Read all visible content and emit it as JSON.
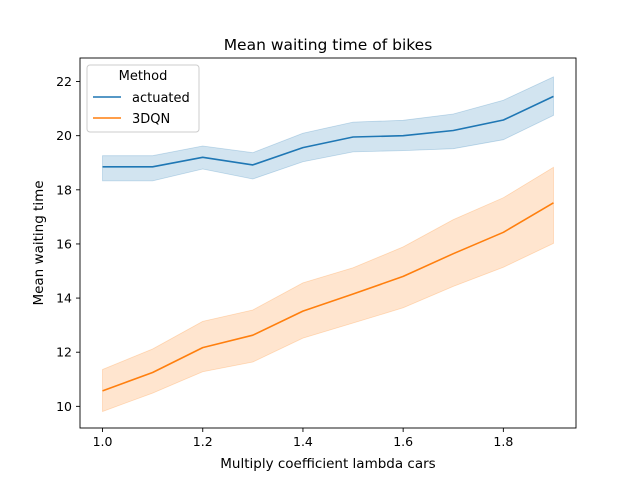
{
  "chart_data": {
    "type": "line",
    "title": "Mean waiting time of bikes",
    "xlabel": "Multiply coefficient lambda cars",
    "ylabel": "Mean waiting time",
    "x": [
      1.0,
      1.1,
      1.2,
      1.3,
      1.4,
      1.5,
      1.6,
      1.7,
      1.8,
      1.9
    ],
    "xlim": [
      0.955,
      1.945
    ],
    "ylim": [
      9.2,
      22.87
    ],
    "xticks": [
      1.0,
      1.2,
      1.4,
      1.6,
      1.8
    ],
    "xtick_labels": [
      "1.0",
      "1.2",
      "1.4",
      "1.6",
      "1.8"
    ],
    "yticks": [
      10,
      12,
      14,
      16,
      18,
      20,
      22
    ],
    "ytick_labels": [
      "10",
      "12",
      "14",
      "16",
      "18",
      "20",
      "22"
    ],
    "grid": false,
    "legend": {
      "title": "Method",
      "placement": "top-left",
      "entries": [
        "actuated",
        "3DQN"
      ]
    },
    "series": [
      {
        "name": "actuated",
        "color": "#1f77b4",
        "values": [
          18.85,
          18.85,
          19.2,
          18.92,
          19.56,
          19.95,
          20.0,
          20.19,
          20.58,
          21.45
        ],
        "band_low": [
          18.33,
          18.33,
          18.77,
          18.4,
          19.04,
          19.4,
          19.45,
          19.52,
          19.85,
          20.75
        ],
        "band_high": [
          19.26,
          19.26,
          19.62,
          19.37,
          20.09,
          20.5,
          20.57,
          20.8,
          21.31,
          22.17
        ]
      },
      {
        "name": "3DQN",
        "color": "#ff7f0e",
        "values": [
          10.57,
          11.25,
          12.17,
          12.63,
          13.52,
          14.15,
          14.8,
          15.64,
          16.43,
          17.52
        ],
        "band_low": [
          9.81,
          10.49,
          11.28,
          11.64,
          12.52,
          13.08,
          13.64,
          14.43,
          15.14,
          16.02
        ],
        "band_high": [
          11.36,
          12.12,
          13.14,
          13.56,
          14.56,
          15.12,
          15.89,
          16.9,
          17.71,
          18.83
        ]
      }
    ]
  }
}
